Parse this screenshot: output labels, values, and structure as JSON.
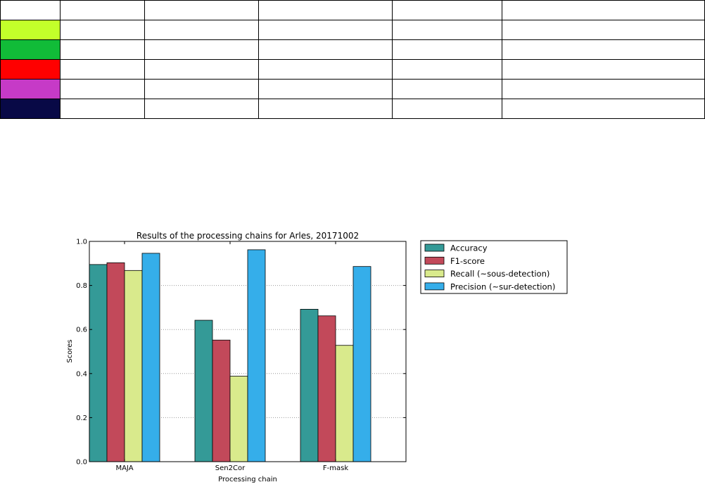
{
  "color_table": {
    "swatches": [
      "",
      "#c3ff2a",
      "#11bc38",
      "#ff0000",
      "#c63ac7",
      "#080946"
    ],
    "columns": 6
  },
  "chart_data": {
    "type": "bar",
    "title": "Results of the processing chains for Arles, 20171002",
    "xlabel": "Processing chain",
    "ylabel": "Scores",
    "ylim": [
      0,
      1.0
    ],
    "yticks": [
      "0.0",
      "0.2",
      "0.4",
      "0.6",
      "0.8",
      "1.0"
    ],
    "grid": "horizontal dotted",
    "legend_position": "outside-right",
    "categories": [
      "MAJA",
      "Sen2Cor",
      "F-mask"
    ],
    "series": [
      {
        "name": "Accuracy",
        "color": "#349a97",
        "values": [
          0.895,
          0.642,
          0.692
        ]
      },
      {
        "name": "F1-score",
        "color": "#c2495a",
        "values": [
          0.903,
          0.552,
          0.662
        ]
      },
      {
        "name": "Recall (~sous-detection)",
        "color": "#d9ea8c",
        "values": [
          0.868,
          0.388,
          0.528
        ]
      },
      {
        "name": "Precision (~sur-detection)",
        "color": "#35aeea",
        "values": [
          0.946,
          0.962,
          0.886
        ]
      }
    ]
  }
}
